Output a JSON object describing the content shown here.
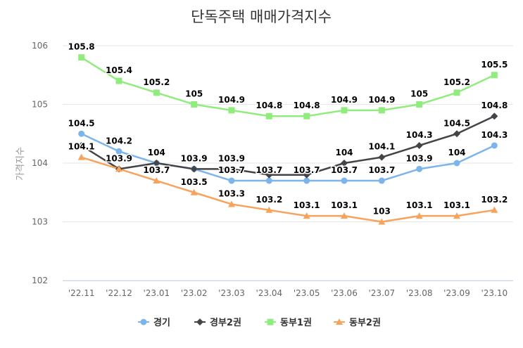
{
  "chart_data": {
    "type": "line",
    "title": "단독주택 매매가격지수",
    "xlabel": "",
    "ylabel": "가격지수",
    "ylim": [
      102,
      106
    ],
    "yticks": [
      "102",
      "103",
      "104",
      "105",
      "106"
    ],
    "categories": [
      "'22.11",
      "'22.12",
      "'23.01",
      "'23.02",
      "'23.03",
      "'23.04",
      "'23.05",
      "'23.06",
      "'23.07",
      "'23.08",
      "'23.09",
      "'23.10"
    ],
    "grid": true,
    "legend_position": "bottom",
    "series": [
      {
        "name": "경기",
        "color": "#7cb5ec",
        "marker": "circle",
        "values": [
          104.5,
          104.2,
          104,
          103.9,
          103.7,
          103.7,
          103.7,
          103.7,
          103.7,
          103.9,
          104,
          104.3
        ],
        "labels": [
          "104.5",
          "104.2",
          "104",
          "103.9",
          "103.7",
          "103.7",
          "103.7",
          "103.7",
          "103.7",
          "103.9",
          "104",
          "104.3"
        ]
      },
      {
        "name": "경부2권",
        "color": "#434348",
        "marker": "diamond",
        "values": [
          104.3,
          103.9,
          104,
          103.9,
          103.9,
          103.8,
          103.8,
          104,
          104.1,
          104.3,
          104.5,
          104.8
        ],
        "labels": [
          "",
          "103.9",
          "",
          "",
          "103.9",
          "",
          "",
          "104",
          "104.1",
          "104.3",
          "104.5",
          "104.8"
        ]
      },
      {
        "name": "동부1권",
        "color": "#90ed7d",
        "marker": "square",
        "values": [
          105.8,
          105.4,
          105.2,
          105,
          104.9,
          104.8,
          104.8,
          104.9,
          104.9,
          105,
          105.2,
          105.5
        ],
        "labels": [
          "105.8",
          "105.4",
          "105.2",
          "105",
          "104.9",
          "104.8",
          "104.8",
          "104.9",
          "104.9",
          "105",
          "105.2",
          "105.5"
        ]
      },
      {
        "name": "동부2권",
        "color": "#f7a35c",
        "marker": "triangle",
        "values": [
          104.1,
          103.9,
          103.7,
          103.5,
          103.3,
          103.2,
          103.1,
          103.1,
          103,
          103.1,
          103.1,
          103.2
        ],
        "labels": [
          "104.1",
          "",
          "103.7",
          "103.5",
          "103.3",
          "103.2",
          "103.1",
          "103.1",
          "103",
          "103.1",
          "103.1",
          "103.2"
        ]
      }
    ]
  }
}
